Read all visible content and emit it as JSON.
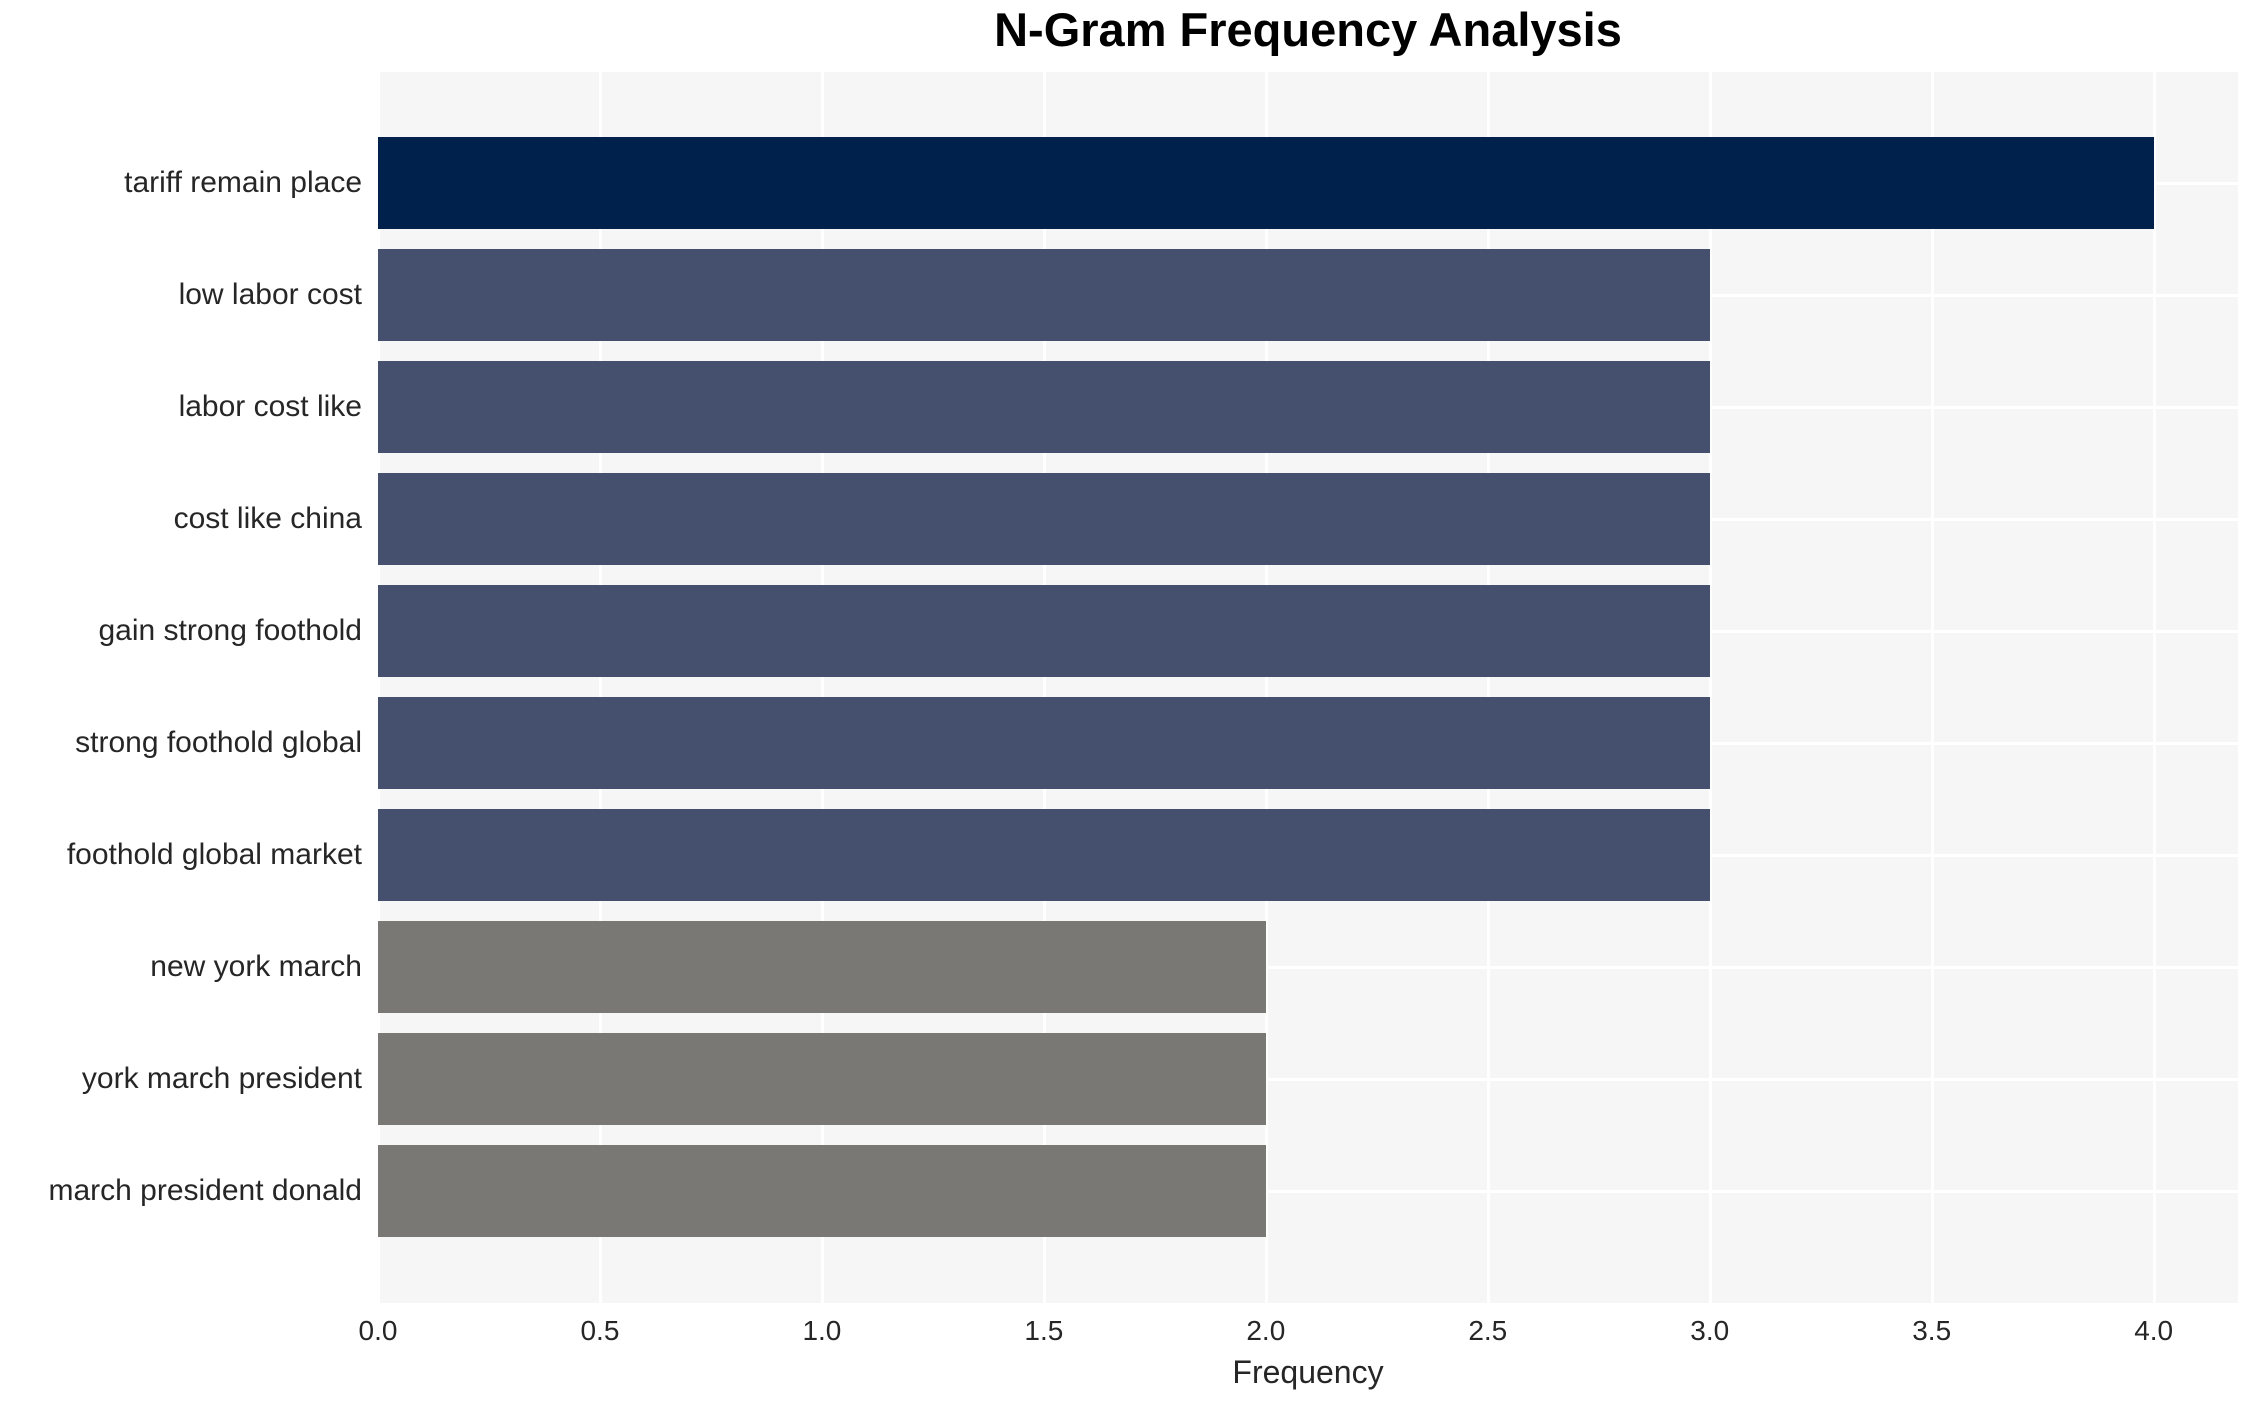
{
  "title": "N-Gram Frequency Analysis",
  "chart_data": {
    "type": "bar",
    "orientation": "horizontal",
    "title": "N-Gram Frequency Analysis",
    "categories": [
      "tariff remain place",
      "low labor cost",
      "labor cost like",
      "cost like china",
      "gain strong foothold",
      "strong foothold global",
      "foothold global market",
      "new york march",
      "york march president",
      "march president donald"
    ],
    "values": [
      4,
      3,
      3,
      3,
      3,
      3,
      3,
      2,
      2,
      2
    ],
    "bar_colors": [
      "#01214d",
      "#454f6e",
      "#454f6e",
      "#454f6e",
      "#454f6e",
      "#454f6e",
      "#454f6e",
      "#7a7875",
      "#7a7875",
      "#7a7875"
    ],
    "xlabel": "Frequency",
    "ylabel": "",
    "x_ticks": [
      "0.0",
      "0.5",
      "1.0",
      "1.5",
      "2.0",
      "2.5",
      "3.0",
      "3.5",
      "4.0"
    ],
    "xlim": [
      0,
      4.19
    ],
    "grid": "white gridlines on light panel, vertical at each tick, horizontal at each category center",
    "legend": "none"
  },
  "colors": {
    "bar_max": "#01214d",
    "bar_mid": "#454f6e",
    "bar_low": "#7a7875",
    "panel_background": "#f6f6f7",
    "gridline": "#ffffff",
    "tick_text": "#262626",
    "title_text": "#000000",
    "page_background": "#ffffff"
  }
}
